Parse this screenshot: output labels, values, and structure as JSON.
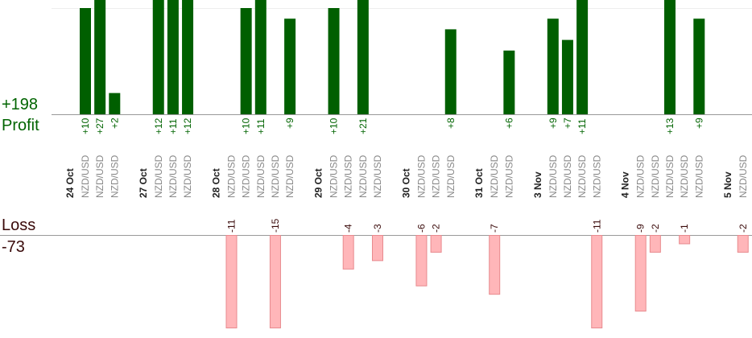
{
  "summary": {
    "profit_total": "+198",
    "profit_label": "Profit",
    "loss_label": "Loss",
    "loss_total": "-73"
  },
  "colors": {
    "profit_bar": "#005f00",
    "profit_text": "#006400",
    "loss_bar": "#ffb6b9",
    "loss_border": "#e88a8e",
    "loss_text": "#3a0a0a",
    "axis": "#999999",
    "date_text": "#222222",
    "pair_text": "#888888",
    "grid": "#eeeeee"
  },
  "chart_data": {
    "type": "bar",
    "instrument": "NZD/USD",
    "dates": [
      "24 Oct",
      "27 Oct",
      "28 Oct",
      "29 Oct",
      "30 Oct",
      "31 Oct",
      "3 Nov",
      "4 Nov",
      "5 Nov"
    ],
    "trades": [
      {
        "date": "24 Oct",
        "pair": "NZD/USD",
        "value": 10,
        "label": "+10"
      },
      {
        "date": "24 Oct",
        "pair": "NZD/USD",
        "value": 27,
        "label": "+27"
      },
      {
        "date": "24 Oct",
        "pair": "NZD/USD",
        "value": 2,
        "label": "+2"
      },
      {
        "date": "27 Oct",
        "pair": "NZD/USD",
        "value": 12,
        "label": "+12"
      },
      {
        "date": "27 Oct",
        "pair": "NZD/USD",
        "value": 11,
        "label": "+11"
      },
      {
        "date": "27 Oct",
        "pair": "NZD/USD",
        "value": 12,
        "label": "+12"
      },
      {
        "date": "28 Oct",
        "pair": "NZD/USD",
        "value": -11,
        "label": "-11"
      },
      {
        "date": "28 Oct",
        "pair": "NZD/USD",
        "value": 10,
        "label": "+10"
      },
      {
        "date": "28 Oct",
        "pair": "NZD/USD",
        "value": 11,
        "label": "+11"
      },
      {
        "date": "28 Oct",
        "pair": "NZD/USD",
        "value": -15,
        "label": "-15"
      },
      {
        "date": "28 Oct",
        "pair": "NZD/USD",
        "value": 9,
        "label": "+9"
      },
      {
        "date": "29 Oct",
        "pair": "NZD/USD",
        "value": 10,
        "label": "+10"
      },
      {
        "date": "29 Oct",
        "pair": "NZD/USD",
        "value": -4,
        "label": "-4"
      },
      {
        "date": "29 Oct",
        "pair": "NZD/USD",
        "value": 21,
        "label": "+21"
      },
      {
        "date": "29 Oct",
        "pair": "NZD/USD",
        "value": -3,
        "label": "-3"
      },
      {
        "date": "30 Oct",
        "pair": "NZD/USD",
        "value": -6,
        "label": "-6"
      },
      {
        "date": "30 Oct",
        "pair": "NZD/USD",
        "value": -2,
        "label": "-2"
      },
      {
        "date": "30 Oct",
        "pair": "NZD/USD",
        "value": 8,
        "label": "+8"
      },
      {
        "date": "31 Oct",
        "pair": "NZD/USD",
        "value": -7,
        "label": "-7"
      },
      {
        "date": "31 Oct",
        "pair": "NZD/USD",
        "value": 6,
        "label": "+6"
      },
      {
        "date": "3 Nov",
        "pair": "NZD/USD",
        "value": 9,
        "label": "+9"
      },
      {
        "date": "3 Nov",
        "pair": "NZD/USD",
        "value": 7,
        "label": "+7"
      },
      {
        "date": "3 Nov",
        "pair": "NZD/USD",
        "value": 11,
        "label": "+11"
      },
      {
        "date": "3 Nov",
        "pair": "NZD/USD",
        "value": -11,
        "label": "-11"
      },
      {
        "date": "4 Nov",
        "pair": "NZD/USD",
        "value": -9,
        "label": "-9"
      },
      {
        "date": "4 Nov",
        "pair": "NZD/USD",
        "value": -2,
        "label": "-2"
      },
      {
        "date": "4 Nov",
        "pair": "NZD/USD",
        "value": 13,
        "label": "+13"
      },
      {
        "date": "4 Nov",
        "pair": "NZD/USD",
        "value": -1,
        "label": "-1"
      },
      {
        "date": "4 Nov",
        "pair": "NZD/USD",
        "value": 9,
        "label": "+9"
      },
      {
        "date": "5 Nov",
        "pair": "NZD/USD",
        "value": -2,
        "label": "-2"
      }
    ],
    "profit_axis_max": 10,
    "loss_axis_max": 11,
    "grid": true
  }
}
